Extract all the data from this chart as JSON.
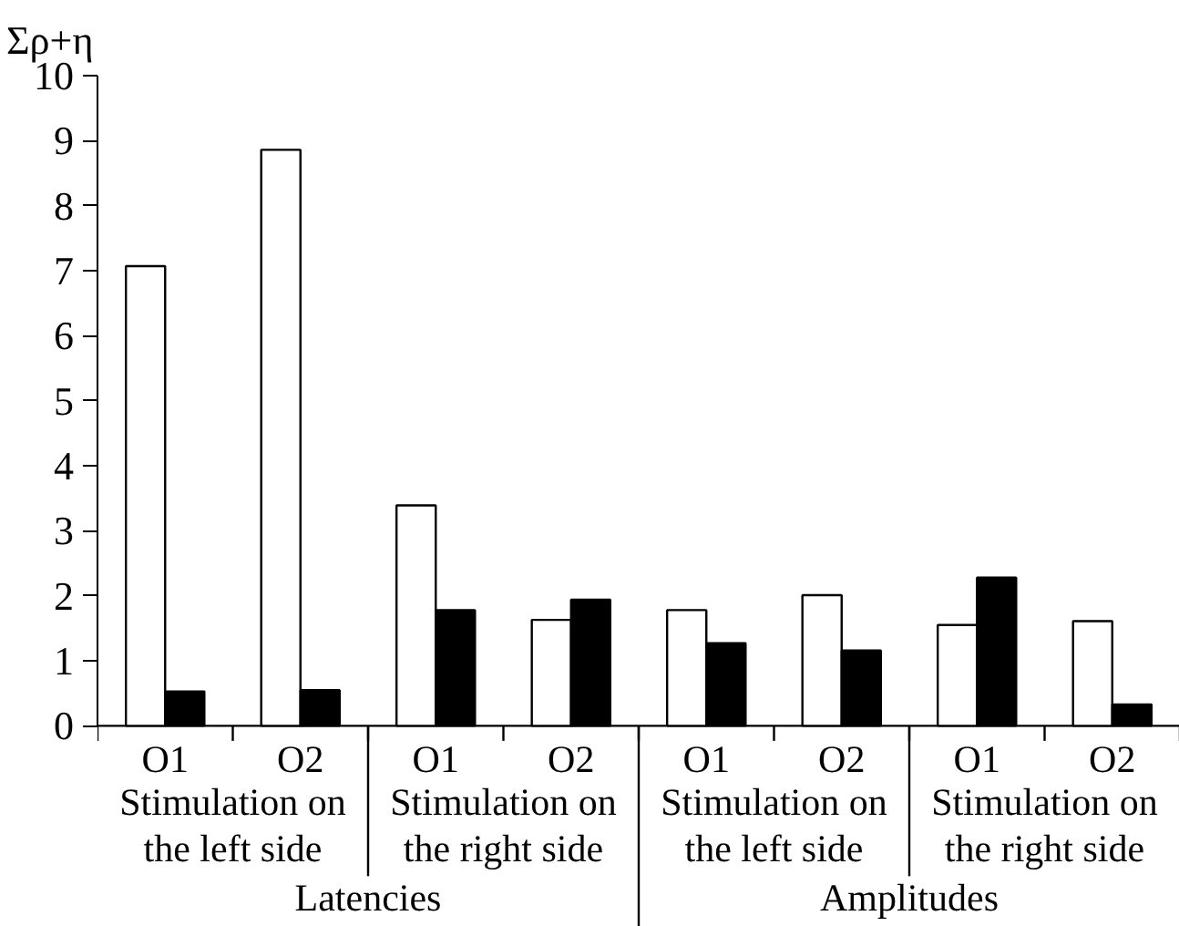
{
  "chart_data": {
    "type": "bar",
    "ylabel": "Σρ+η",
    "categories": [
      "O1",
      "O2",
      "O1",
      "O2",
      "O1",
      "O2",
      "O1",
      "O2"
    ],
    "series": [
      {
        "color": "#ffffff",
        "values": [
          7.07,
          8.86,
          3.39,
          1.63,
          1.78,
          2.01,
          1.55,
          1.61
        ]
      },
      {
        "color": "#000000",
        "values": [
          0.53,
          0.55,
          1.78,
          1.94,
          1.27,
          1.16,
          2.28,
          0.33
        ]
      }
    ],
    "ylim": [
      0,
      10
    ],
    "yticks": [
      0,
      1,
      2,
      3,
      4,
      5,
      6,
      7,
      8,
      9,
      10
    ],
    "grid": false,
    "annotations": [
      "Stimulation on\nthe left side",
      "Stimulation on\nthe right side",
      "Stimulation on\nthe left side",
      "Stimulation on\nthe right side",
      "Latencies",
      "Amplitudes"
    ]
  }
}
